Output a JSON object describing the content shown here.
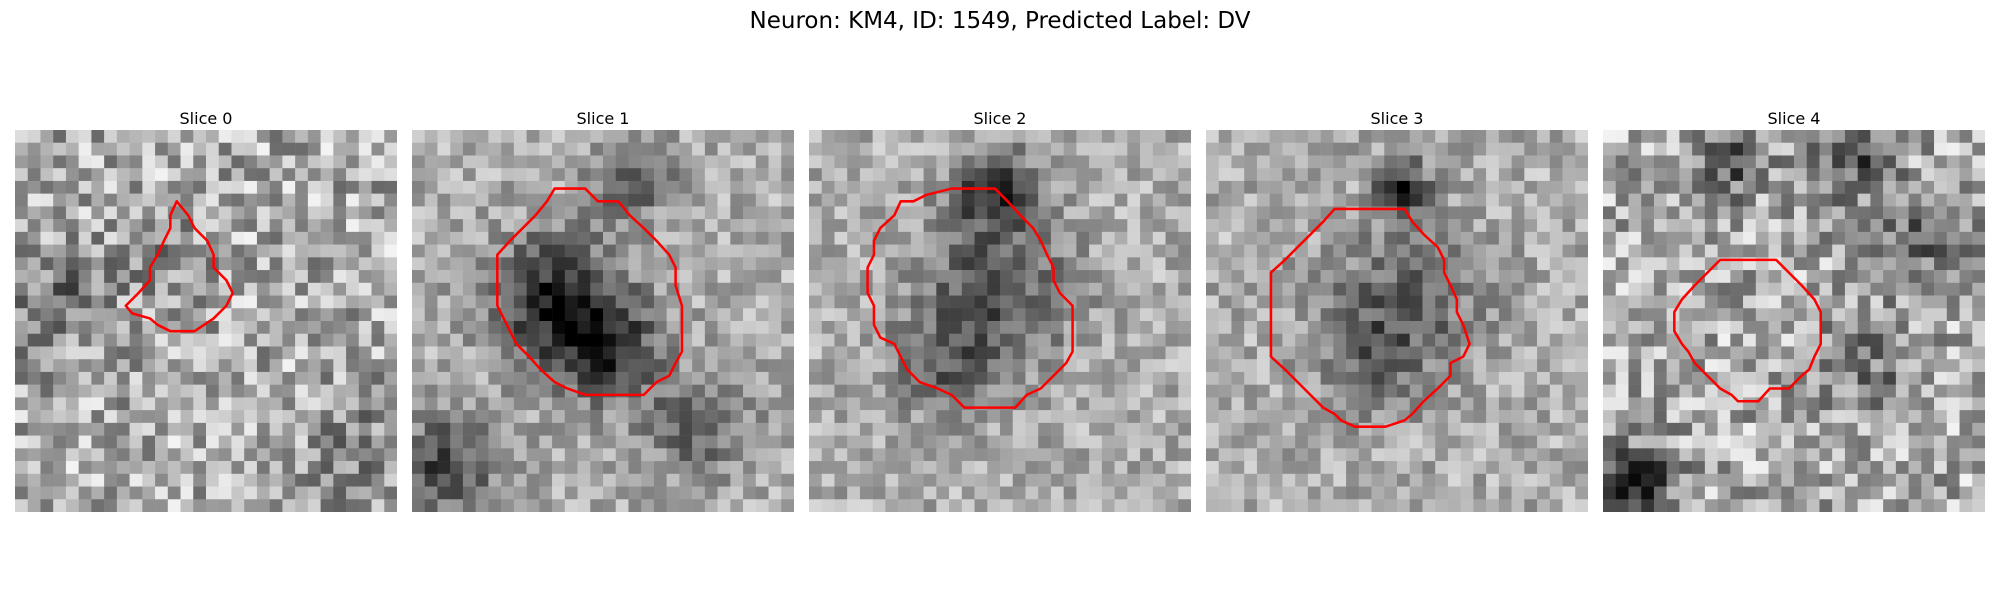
{
  "figure": {
    "title": "Neuron: KM4, ID: 1549, Predicted Label: DV"
  },
  "panels": [
    {
      "title": "Slice 0",
      "contour": [
        [
          12.7,
          5.6
        ],
        [
          13.6,
          6.7
        ],
        [
          14.1,
          7.7
        ],
        [
          15.1,
          8.7
        ],
        [
          15.6,
          9.8
        ],
        [
          15.6,
          10.8
        ],
        [
          16.6,
          11.8
        ],
        [
          17.1,
          12.8
        ],
        [
          16.6,
          13.8
        ],
        [
          15.6,
          14.8
        ],
        [
          14.1,
          15.8
        ],
        [
          12.2,
          15.8
        ],
        [
          11.2,
          15.3
        ],
        [
          10.6,
          14.8
        ],
        [
          9.2,
          14.4
        ],
        [
          8.7,
          13.8
        ],
        [
          9.7,
          12.8
        ],
        [
          10.6,
          11.8
        ],
        [
          10.6,
          10.8
        ],
        [
          11.2,
          9.8
        ],
        [
          11.7,
          8.7
        ],
        [
          12.2,
          7.7
        ],
        [
          12.2,
          6.7
        ]
      ]
    },
    {
      "title": "Slice 1",
      "contour": [
        [
          11.2,
          4.6
        ],
        [
          13.6,
          4.6
        ],
        [
          14.6,
          5.6
        ],
        [
          16.2,
          5.6
        ],
        [
          17.1,
          6.7
        ],
        [
          18.2,
          7.7
        ],
        [
          19.2,
          8.7
        ],
        [
          20.2,
          9.8
        ],
        [
          20.7,
          10.8
        ],
        [
          20.7,
          12.2
        ],
        [
          21.2,
          13.8
        ],
        [
          21.2,
          16.3
        ],
        [
          21.2,
          17.4
        ],
        [
          20.7,
          18.3
        ],
        [
          20.2,
          19.3
        ],
        [
          19.2,
          19.8
        ],
        [
          18.2,
          20.8
        ],
        [
          13.6,
          20.8
        ],
        [
          12.2,
          20.3
        ],
        [
          11.2,
          19.8
        ],
        [
          10.1,
          18.8
        ],
        [
          9.2,
          17.8
        ],
        [
          8.2,
          16.8
        ],
        [
          7.7,
          15.8
        ],
        [
          7.2,
          14.8
        ],
        [
          6.7,
          13.8
        ],
        [
          6.7,
          10.8
        ],
        [
          6.7,
          9.8
        ],
        [
          7.7,
          8.7
        ],
        [
          8.7,
          7.7
        ],
        [
          9.7,
          6.7
        ],
        [
          10.6,
          5.6
        ]
      ]
    },
    {
      "title": "Slice 2",
      "contour": [
        [
          9.2,
          5.1
        ],
        [
          11.2,
          4.6
        ],
        [
          14.6,
          4.6
        ],
        [
          15.6,
          5.6
        ],
        [
          16.6,
          6.7
        ],
        [
          17.6,
          7.7
        ],
        [
          18.2,
          8.7
        ],
        [
          18.7,
          9.8
        ],
        [
          19.2,
          10.8
        ],
        [
          19.2,
          11.8
        ],
        [
          19.7,
          12.8
        ],
        [
          20.7,
          13.8
        ],
        [
          20.7,
          15.8
        ],
        [
          20.7,
          17.4
        ],
        [
          20.2,
          18.3
        ],
        [
          19.2,
          19.3
        ],
        [
          18.2,
          20.3
        ],
        [
          17.1,
          20.8
        ],
        [
          16.2,
          21.8
        ],
        [
          12.2,
          21.8
        ],
        [
          11.2,
          20.8
        ],
        [
          10.1,
          20.3
        ],
        [
          8.7,
          19.8
        ],
        [
          7.7,
          18.8
        ],
        [
          7.2,
          17.8
        ],
        [
          6.7,
          16.8
        ],
        [
          5.6,
          16.3
        ],
        [
          5.1,
          15.3
        ],
        [
          5.1,
          13.8
        ],
        [
          4.6,
          12.8
        ],
        [
          4.6,
          10.8
        ],
        [
          5.1,
          9.8
        ],
        [
          5.1,
          8.7
        ],
        [
          5.6,
          7.7
        ],
        [
          6.7,
          6.7
        ],
        [
          7.2,
          5.6
        ],
        [
          8.2,
          5.6
        ]
      ]
    },
    {
      "title": "Slice 3",
      "contour": [
        [
          10.1,
          6.2
        ],
        [
          15.6,
          6.2
        ],
        [
          16.2,
          7.2
        ],
        [
          17.1,
          8.2
        ],
        [
          18.2,
          9.2
        ],
        [
          18.7,
          10.2
        ],
        [
          18.7,
          11.2
        ],
        [
          19.2,
          12.2
        ],
        [
          19.7,
          13.3
        ],
        [
          19.7,
          14.3
        ],
        [
          20.2,
          15.3
        ],
        [
          20.7,
          16.8
        ],
        [
          20.2,
          17.8
        ],
        [
          19.2,
          18.3
        ],
        [
          19.2,
          19.3
        ],
        [
          18.2,
          20.3
        ],
        [
          17.1,
          21.3
        ],
        [
          16.2,
          22.3
        ],
        [
          15.6,
          22.8
        ],
        [
          14.1,
          23.3
        ],
        [
          11.7,
          23.3
        ],
        [
          10.6,
          22.8
        ],
        [
          10.1,
          22.3
        ],
        [
          9.2,
          21.8
        ],
        [
          8.2,
          20.8
        ],
        [
          7.2,
          19.8
        ],
        [
          6.2,
          18.8
        ],
        [
          5.1,
          17.8
        ],
        [
          5.1,
          16.3
        ],
        [
          5.1,
          11.2
        ],
        [
          6.2,
          10.2
        ],
        [
          7.2,
          9.2
        ],
        [
          8.2,
          8.2
        ],
        [
          9.2,
          7.2
        ]
      ]
    },
    {
      "title": "Slice 4",
      "contour": [
        [
          10.6,
          10.2
        ],
        [
          13.6,
          10.2
        ],
        [
          14.6,
          11.2
        ],
        [
          15.6,
          12.2
        ],
        [
          16.6,
          13.3
        ],
        [
          17.1,
          14.3
        ],
        [
          17.1,
          15.8
        ],
        [
          17.1,
          16.8
        ],
        [
          16.6,
          17.8
        ],
        [
          16.2,
          18.8
        ],
        [
          15.6,
          19.3
        ],
        [
          14.6,
          20.3
        ],
        [
          13.1,
          20.3
        ],
        [
          12.2,
          21.3
        ],
        [
          10.6,
          21.3
        ],
        [
          10.1,
          20.8
        ],
        [
          9.2,
          20.3
        ],
        [
          8.2,
          19.3
        ],
        [
          7.2,
          18.3
        ],
        [
          6.7,
          17.4
        ],
        [
          6.2,
          16.8
        ],
        [
          5.6,
          15.8
        ],
        [
          5.6,
          14.3
        ],
        [
          6.2,
          13.3
        ],
        [
          7.2,
          12.2
        ],
        [
          8.2,
          11.2
        ],
        [
          9.2,
          10.2
        ]
      ]
    }
  ],
  "colors": {
    "contour": "#ff0000"
  }
}
